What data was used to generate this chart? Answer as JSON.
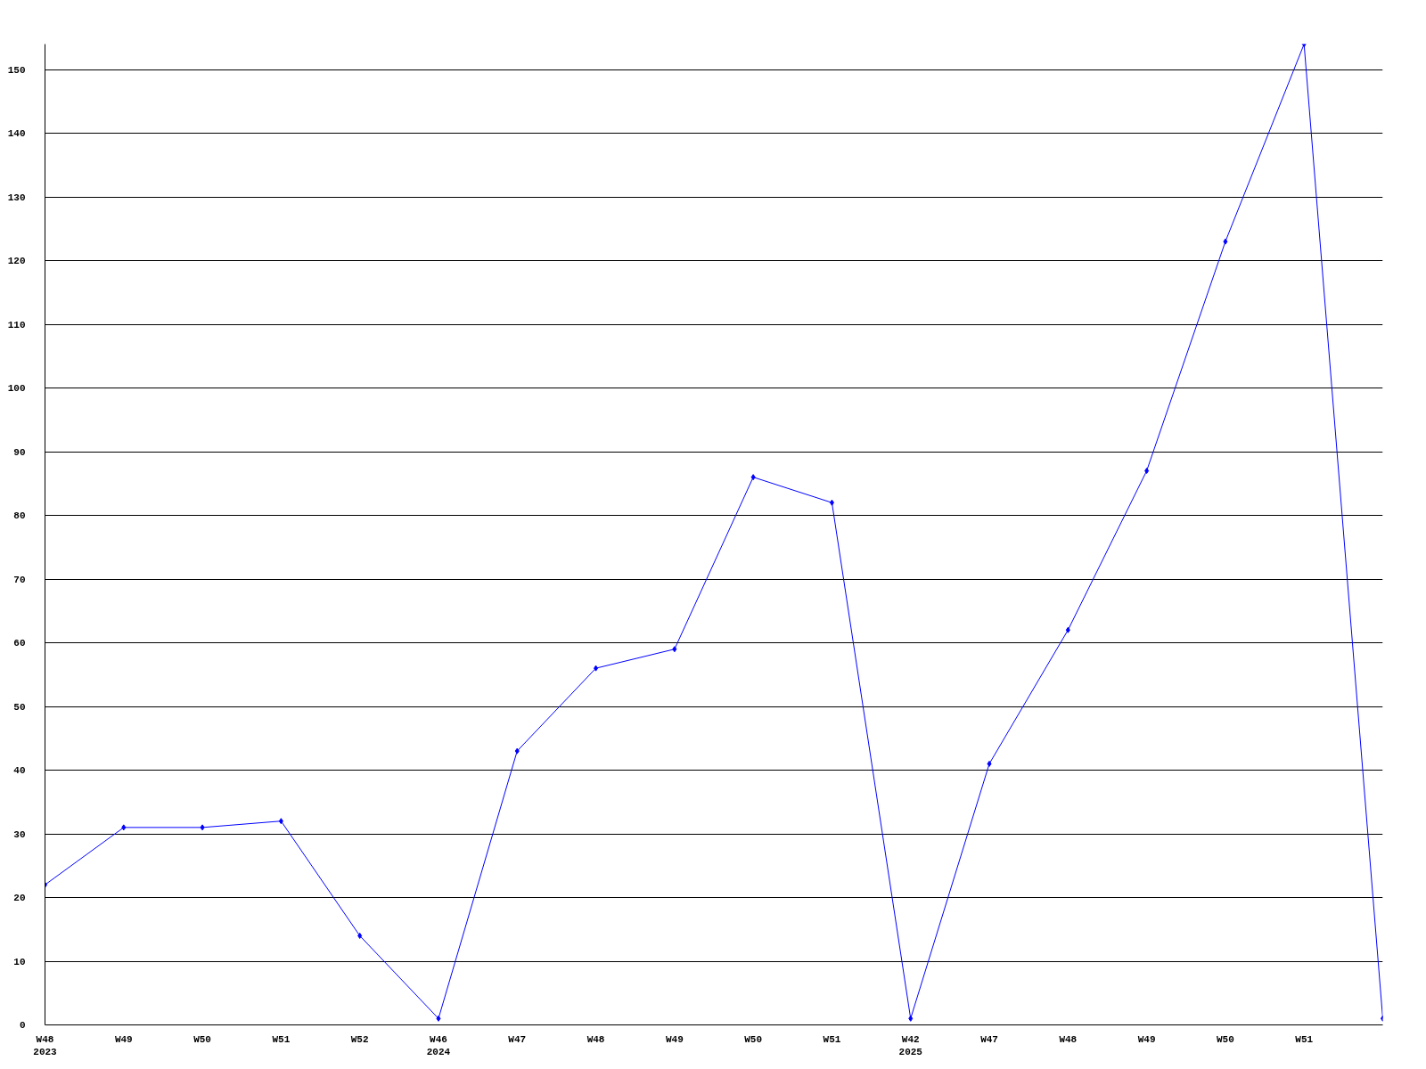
{
  "chart_data": {
    "type": "line",
    "categories": [
      "W48\n2023",
      "W49",
      "W50",
      "W51",
      "W52",
      "W46\n2024",
      "W47",
      "W48",
      "W49",
      "W50",
      "W51",
      "W42\n2025",
      "W47",
      "W48",
      "W49",
      "W50",
      "W51",
      null
    ],
    "series": [
      {
        "color": "#0000ff",
        "values": [
          22,
          31,
          31,
          32,
          14,
          1,
          43,
          56,
          59,
          86,
          82,
          1,
          41,
          62,
          87,
          123,
          154,
          1
        ]
      }
    ],
    "ylim": [
      0,
      154
    ],
    "yticks": [
      0,
      10,
      20,
      30,
      40,
      50,
      60,
      70,
      80,
      90,
      100,
      110,
      120,
      130,
      140,
      150
    ],
    "grid": "y",
    "marker": "diamond",
    "line_style": "solid"
  }
}
